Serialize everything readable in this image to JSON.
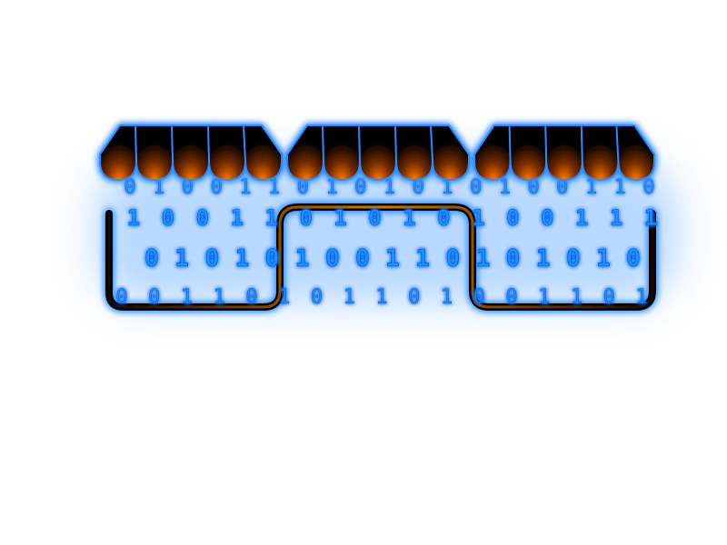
{
  "illustration": {
    "subject": "storefront-awnings-binary-code",
    "colors": {
      "awning_dark": "#050100",
      "awning_glow": "#ff7b00",
      "outline_blue": "#2f8bff",
      "digit_blue": "#1e90ff",
      "digit_core": "#0a4ad8",
      "haze_blue": "#7fbaff",
      "trough_orange": "#ff8a00"
    },
    "awnings": [
      {
        "name": "awning-left",
        "scallops": 5
      },
      {
        "name": "awning-center",
        "scallops": 5
      },
      {
        "name": "awning-right",
        "scallops": 5
      }
    ],
    "binary_rows": [
      {
        "name": "binary-row-1",
        "digits": [
          "0",
          "1",
          "0",
          "0",
          "1",
          "1",
          "0",
          "1",
          "0",
          "1",
          "0",
          "1",
          "0",
          "1",
          "0",
          "0",
          "1",
          "1",
          "0"
        ]
      },
      {
        "name": "binary-row-2",
        "digits": [
          "1",
          "0",
          "0",
          "1",
          "1",
          "0",
          "1",
          "0",
          "1",
          "0",
          "1",
          "0",
          "0",
          "1",
          "1",
          "1"
        ]
      },
      {
        "name": "binary-row-3",
        "digits": [
          "0",
          "1",
          "0",
          "1",
          "0",
          "1",
          "0",
          "0",
          "1",
          "1",
          "0",
          "1",
          "0",
          "1",
          "0",
          "1",
          "0"
        ]
      },
      {
        "name": "binary-row-4",
        "digits": [
          "0",
          "0",
          "1",
          "1",
          "0",
          "1",
          "0",
          "1",
          "1",
          "0",
          "1",
          "0",
          "0",
          "1",
          "1",
          "0",
          "1"
        ]
      }
    ]
  }
}
